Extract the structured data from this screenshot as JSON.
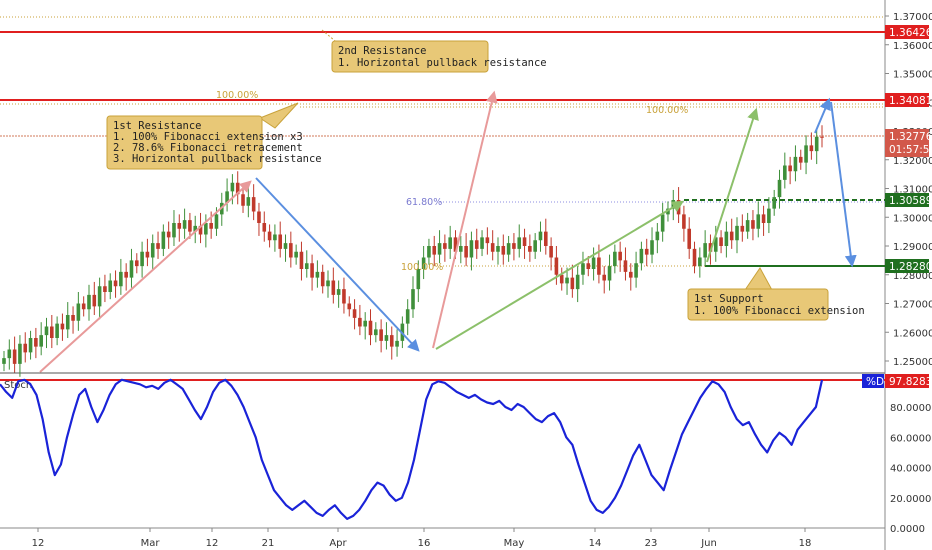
{
  "chart_data": [
    {
      "type": "candlestick",
      "ylim": [
        1.245,
        1.372
      ],
      "y_ticks": [
        "1.37000",
        "1.36000",
        "1.35000",
        "1.34000",
        "1.33000",
        "1.32000",
        "1.31000",
        "1.30000",
        "1.29000",
        "1.28000",
        "1.27000",
        "1.26000",
        "1.25000"
      ],
      "x_ticks": [
        "12",
        "Mar",
        "12",
        "21",
        "Apr",
        "16",
        "May",
        "14",
        "23",
        "Jun",
        "18"
      ],
      "series": [
        {
          "close": [
            1.251,
            1.254,
            1.249,
            1.256,
            1.253,
            1.258,
            1.255,
            1.259,
            1.262,
            1.258,
            1.263,
            1.261,
            1.266,
            1.264,
            1.27,
            1.268,
            1.273,
            1.269,
            1.276,
            1.274,
            1.278,
            1.276,
            1.281,
            1.279,
            1.285,
            1.283,
            1.288,
            1.286,
            1.291,
            1.289,
            1.295,
            1.293,
            1.298,
            1.296,
            1.299,
            1.295,
            1.297,
            1.294,
            1.298,
            1.296,
            1.301,
            1.305,
            1.309,
            1.312,
            1.308,
            1.304,
            1.307,
            1.302,
            1.298,
            1.295,
            1.292,
            1.294,
            1.289,
            1.291,
            1.286,
            1.288,
            1.282,
            1.284,
            1.279,
            1.281,
            1.276,
            1.278,
            1.273,
            1.275,
            1.27,
            1.268,
            1.265,
            1.262,
            1.264,
            1.259,
            1.261,
            1.257,
            1.259,
            1.255,
            1.257,
            1.263,
            1.268,
            1.275,
            1.282,
            1.286,
            1.29,
            1.287,
            1.291,
            1.289,
            1.293,
            1.288,
            1.29,
            1.286,
            1.292,
            1.289,
            1.293,
            1.291,
            1.288,
            1.29,
            1.287,
            1.291,
            1.289,
            1.293,
            1.29,
            1.288,
            1.292,
            1.295,
            1.29,
            1.286,
            1.28,
            1.277,
            1.279,
            1.275,
            1.28,
            1.284,
            1.282,
            1.286,
            1.28,
            1.278,
            1.283,
            1.288,
            1.285,
            1.281,
            1.279,
            1.284,
            1.289,
            1.287,
            1.292,
            1.295,
            1.301,
            1.303,
            1.306,
            1.301,
            1.296,
            1.289,
            1.283,
            1.286,
            1.291,
            1.288,
            1.293,
            1.29,
            1.295,
            1.292,
            1.297,
            1.295,
            1.299,
            1.296,
            1.301,
            1.298,
            1.303,
            1.307,
            1.313,
            1.318,
            1.316,
            1.321,
            1.319,
            1.325,
            1.323,
            1.328,
            1.3278
          ],
          "name": ""
        }
      ]
    },
    {
      "type": "line",
      "ylim": [
        0,
        100
      ],
      "y_ticks": [
        "80.0000",
        "60.0000",
        "40.0000",
        "20.0000",
        "0.0000"
      ],
      "series": [
        {
          "name": "%D",
          "values": [
            95,
            90,
            86,
            97,
            98,
            95,
            88,
            72,
            50,
            35,
            42,
            60,
            75,
            88,
            92,
            80,
            70,
            78,
            88,
            95,
            98,
            97,
            96,
            95,
            93,
            94,
            92,
            96,
            98,
            95,
            92,
            85,
            78,
            72,
            80,
            90,
            96,
            98,
            94,
            88,
            80,
            70,
            60,
            45,
            35,
            25,
            20,
            15,
            12,
            15,
            18,
            14,
            10,
            8,
            12,
            15,
            10,
            6,
            8,
            12,
            18,
            25,
            30,
            28,
            22,
            18,
            20,
            30,
            45,
            65,
            85,
            95,
            97,
            96,
            93,
            90,
            88,
            86,
            88,
            85,
            83,
            82,
            84,
            80,
            78,
            82,
            80,
            76,
            72,
            70,
            74,
            76,
            70,
            60,
            55,
            42,
            30,
            18,
            12,
            10,
            14,
            20,
            28,
            38,
            48,
            55,
            45,
            35,
            30,
            25,
            38,
            50,
            62,
            70,
            78,
            86,
            92,
            97,
            95,
            90,
            80,
            72,
            68,
            70,
            62,
            55,
            50,
            58,
            63,
            60,
            55,
            65,
            70,
            75,
            80,
            97.8283
          ],
          "last_label": "97.8283"
        }
      ]
    }
  ],
  "price_badges": {
    "resist2": "1.36426",
    "resist1": "1.34081",
    "current": "1.32776",
    "countdown": "01:57:55",
    "support_upper": "1.30589",
    "support": "1.28280",
    "stoch": "97.8283",
    "stoch_legend": "%D"
  },
  "fib_labels": {
    "left_top": "100.00%",
    "right_top": "100.00%",
    "ret": "61.80%",
    "left_bottom": "100.00%"
  },
  "notes": {
    "resistance2": [
      "2nd Resistance",
      "1. Horizontal pullback resistance"
    ],
    "resistance1": [
      "1st Resistance",
      "1. 100% Fibonacci extension x3",
      "2. 78.6% Fibonacci retracement",
      "3. Horizontal pullback resistance"
    ],
    "support1": [
      "1st Support",
      "1. 100% Fibonacci extension"
    ]
  },
  "indicator_label": "Stoch",
  "colors": {
    "up": "#3f8f3a",
    "down": "#c0392b",
    "stoch": "#1a23d8",
    "resistance": "#e01f1f",
    "support": "#1f6f1f",
    "fib": "#c9a23a",
    "note_bg": "#e8c877",
    "note_border": "#c9a23a"
  }
}
